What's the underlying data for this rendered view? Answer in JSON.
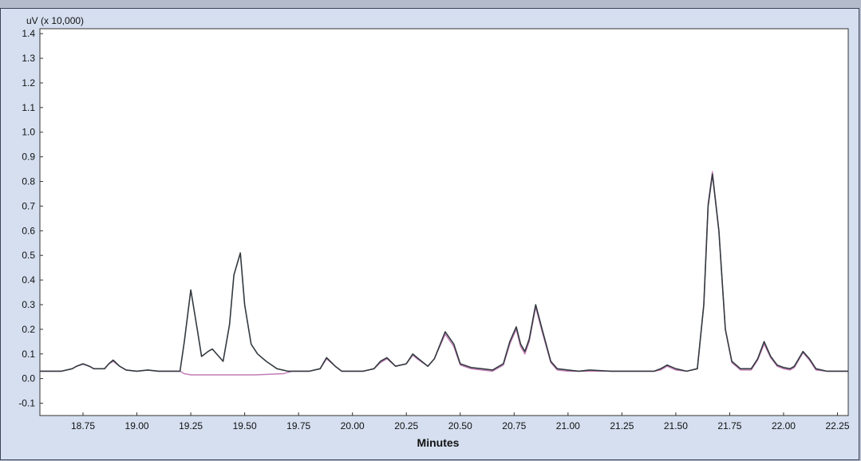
{
  "chart_data": {
    "type": "line",
    "title": "",
    "xlabel": "Minutes",
    "ylabel": "uV (x 10,000)",
    "xlim": [
      18.55,
      22.3
    ],
    "ylim": [
      -0.15,
      1.42
    ],
    "x_ticks": [
      18.75,
      19.0,
      19.25,
      19.5,
      19.75,
      20.0,
      20.25,
      20.5,
      20.75,
      21.0,
      21.25,
      21.5,
      21.75,
      22.0,
      22.25
    ],
    "x_tick_labels": [
      "18.75",
      "19.00",
      "19.25",
      "19.50",
      "19.75",
      "20.00",
      "20.25",
      "20.50",
      "20.75",
      "21.00",
      "21.25",
      "21.50",
      "21.75",
      "22.00",
      "22.25"
    ],
    "y_ticks": [
      -0.1,
      0.0,
      0.1,
      0.2,
      0.3,
      0.4,
      0.5,
      0.6,
      0.7,
      0.8,
      0.9,
      1.0,
      1.1,
      1.2,
      1.3,
      1.4
    ],
    "y_tick_labels": [
      "-0.1",
      "0.0",
      "0.1",
      "0.2",
      "0.3",
      "0.4",
      "0.5",
      "0.6",
      "0.7",
      "0.8",
      "0.9",
      "1.0",
      "1.1",
      "1.2",
      "1.3",
      "1.4"
    ],
    "grid": false,
    "colors": {
      "series_1": "#333a40",
      "series_2": "#c27bb6",
      "plot_bg": "#ffffff",
      "frame_bg": "#d5dff0"
    },
    "series": [
      {
        "x": [
          18.55,
          18.6,
          18.65,
          18.7,
          18.72,
          18.75,
          18.78,
          18.8,
          18.85,
          18.87,
          18.89,
          18.92,
          18.95,
          19.0,
          19.05,
          19.1,
          19.15,
          19.2,
          19.22,
          19.25,
          19.28,
          19.3,
          19.33,
          19.35,
          19.38,
          19.4,
          19.43,
          19.45,
          19.48,
          19.5,
          19.53,
          19.56,
          19.6,
          19.65,
          19.7,
          19.75,
          19.8,
          19.85,
          19.88,
          19.92,
          19.95,
          20.0,
          20.05,
          20.1,
          20.13,
          20.16,
          20.2,
          20.25,
          20.28,
          20.3,
          20.35,
          20.38,
          20.43,
          20.47,
          20.5,
          20.55,
          20.6,
          20.65,
          20.7,
          20.73,
          20.76,
          20.78,
          20.8,
          20.82,
          20.85,
          20.88,
          20.92,
          20.95,
          21.0,
          21.05,
          21.1,
          21.2,
          21.3,
          21.4,
          21.43,
          21.46,
          21.5,
          21.55,
          21.6,
          21.63,
          21.65,
          21.67,
          21.7,
          21.73,
          21.76,
          21.8,
          21.85,
          21.88,
          21.91,
          21.94,
          21.97,
          22.0,
          22.03,
          22.05,
          22.07,
          22.09,
          22.12,
          22.15,
          22.2,
          22.25,
          22.3
        ],
        "values": [
          0.03,
          0.03,
          0.03,
          0.04,
          0.05,
          0.06,
          0.05,
          0.04,
          0.04,
          0.06,
          0.075,
          0.05,
          0.035,
          0.03,
          0.035,
          0.03,
          0.03,
          0.03,
          0.15,
          0.36,
          0.2,
          0.09,
          0.11,
          0.12,
          0.09,
          0.07,
          0.22,
          0.42,
          0.51,
          0.3,
          0.14,
          0.1,
          0.07,
          0.04,
          0.03,
          0.03,
          0.03,
          0.04,
          0.085,
          0.05,
          0.03,
          0.03,
          0.03,
          0.04,
          0.07,
          0.085,
          0.05,
          0.06,
          0.1,
          0.085,
          0.05,
          0.08,
          0.19,
          0.14,
          0.06,
          0.045,
          0.04,
          0.035,
          0.06,
          0.15,
          0.21,
          0.14,
          0.11,
          0.16,
          0.3,
          0.2,
          0.07,
          0.04,
          0.035,
          0.03,
          0.035,
          0.03,
          0.03,
          0.03,
          0.04,
          0.055,
          0.04,
          0.03,
          0.04,
          0.3,
          0.7,
          0.83,
          0.6,
          0.2,
          0.07,
          0.04,
          0.04,
          0.08,
          0.15,
          0.09,
          0.055,
          0.045,
          0.04,
          0.05,
          0.08,
          0.11,
          0.08,
          0.04,
          0.03,
          0.03,
          0.03
        ]
      },
      {
        "x": [
          18.55,
          18.6,
          18.65,
          18.7,
          18.72,
          18.75,
          18.78,
          18.8,
          18.85,
          18.87,
          18.89,
          18.92,
          18.95,
          19.0,
          19.05,
          19.1,
          19.15,
          19.2,
          19.22,
          19.25,
          19.4,
          19.55,
          19.68,
          19.72,
          19.75,
          19.8,
          19.85,
          19.88,
          19.92,
          19.95,
          20.0,
          20.05,
          20.1,
          20.13,
          20.16,
          20.2,
          20.25,
          20.28,
          20.3,
          20.35,
          20.38,
          20.43,
          20.47,
          20.5,
          20.55,
          20.6,
          20.65,
          20.7,
          20.73,
          20.76,
          20.78,
          20.8,
          20.82,
          20.85,
          20.88,
          20.92,
          20.95,
          21.0,
          21.05,
          21.1,
          21.2,
          21.3,
          21.4,
          21.43,
          21.46,
          21.5,
          21.55,
          21.6,
          21.63,
          21.65,
          21.67,
          21.7,
          21.73,
          21.76,
          21.8,
          21.85,
          21.88,
          21.91,
          21.94,
          21.97,
          22.0,
          22.03,
          22.05,
          22.07,
          22.09,
          22.12,
          22.15,
          22.2,
          22.25,
          22.3
        ],
        "values": [
          0.03,
          0.03,
          0.03,
          0.04,
          0.05,
          0.058,
          0.05,
          0.04,
          0.04,
          0.06,
          0.07,
          0.05,
          0.035,
          0.03,
          0.035,
          0.03,
          0.03,
          0.03,
          0.02,
          0.015,
          0.015,
          0.015,
          0.02,
          0.03,
          0.03,
          0.03,
          0.04,
          0.08,
          0.05,
          0.03,
          0.03,
          0.03,
          0.04,
          0.065,
          0.08,
          0.05,
          0.06,
          0.095,
          0.08,
          0.05,
          0.08,
          0.18,
          0.13,
          0.055,
          0.04,
          0.035,
          0.03,
          0.055,
          0.14,
          0.2,
          0.13,
          0.1,
          0.15,
          0.29,
          0.19,
          0.065,
          0.035,
          0.03,
          0.03,
          0.03,
          0.03,
          0.03,
          0.03,
          0.035,
          0.05,
          0.035,
          0.03,
          0.04,
          0.3,
          0.71,
          0.84,
          0.6,
          0.2,
          0.065,
          0.035,
          0.035,
          0.075,
          0.14,
          0.085,
          0.05,
          0.04,
          0.035,
          0.045,
          0.075,
          0.105,
          0.075,
          0.035,
          0.03,
          0.03,
          0.03
        ]
      }
    ]
  }
}
